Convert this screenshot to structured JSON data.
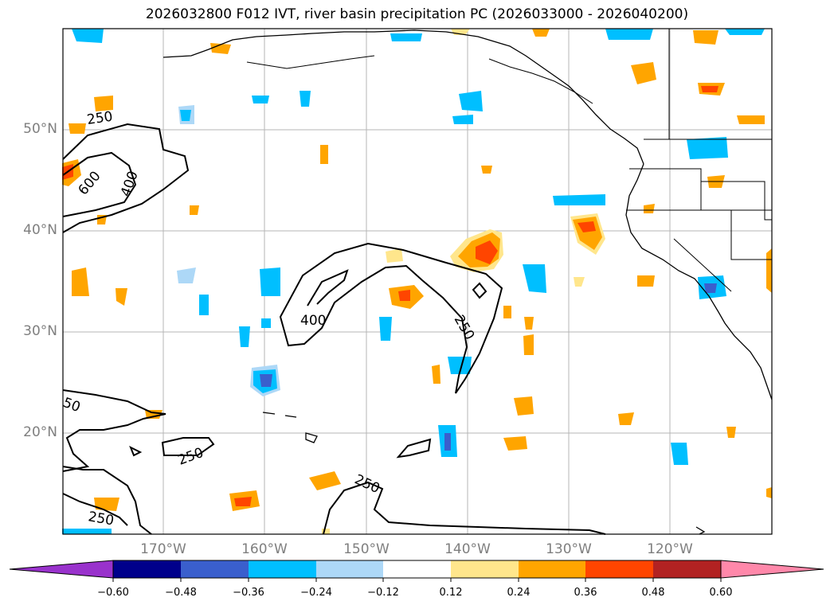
{
  "title": "2026032800 F012 IVT, river basin precipitation PC (2026033000 - 2026040200)",
  "lat_labels": [
    "50°N",
    "40°N",
    "30°N",
    "20°N"
  ],
  "lon_labels": [
    "170°W",
    "160°W",
    "150°W",
    "140°W",
    "130°W",
    "120°W"
  ],
  "ivt_contour_labels": [
    "250",
    "600",
    "400",
    "400",
    "250",
    "250",
    "250",
    "250",
    "50"
  ],
  "colorbar": {
    "ticks": [
      "−0.60",
      "−0.48",
      "−0.36",
      "−0.24",
      "−0.12",
      "0.12",
      "0.24",
      "0.36",
      "0.48",
      "0.60"
    ],
    "colors": [
      "#9932cc",
      "#00008b",
      "#3a5fcd",
      "#00bfff",
      "#add8f7",
      "#ffffff",
      "#ffe68c",
      "#ffa500",
      "#ff4500",
      "#b22222",
      "#ff88aa"
    ]
  }
}
